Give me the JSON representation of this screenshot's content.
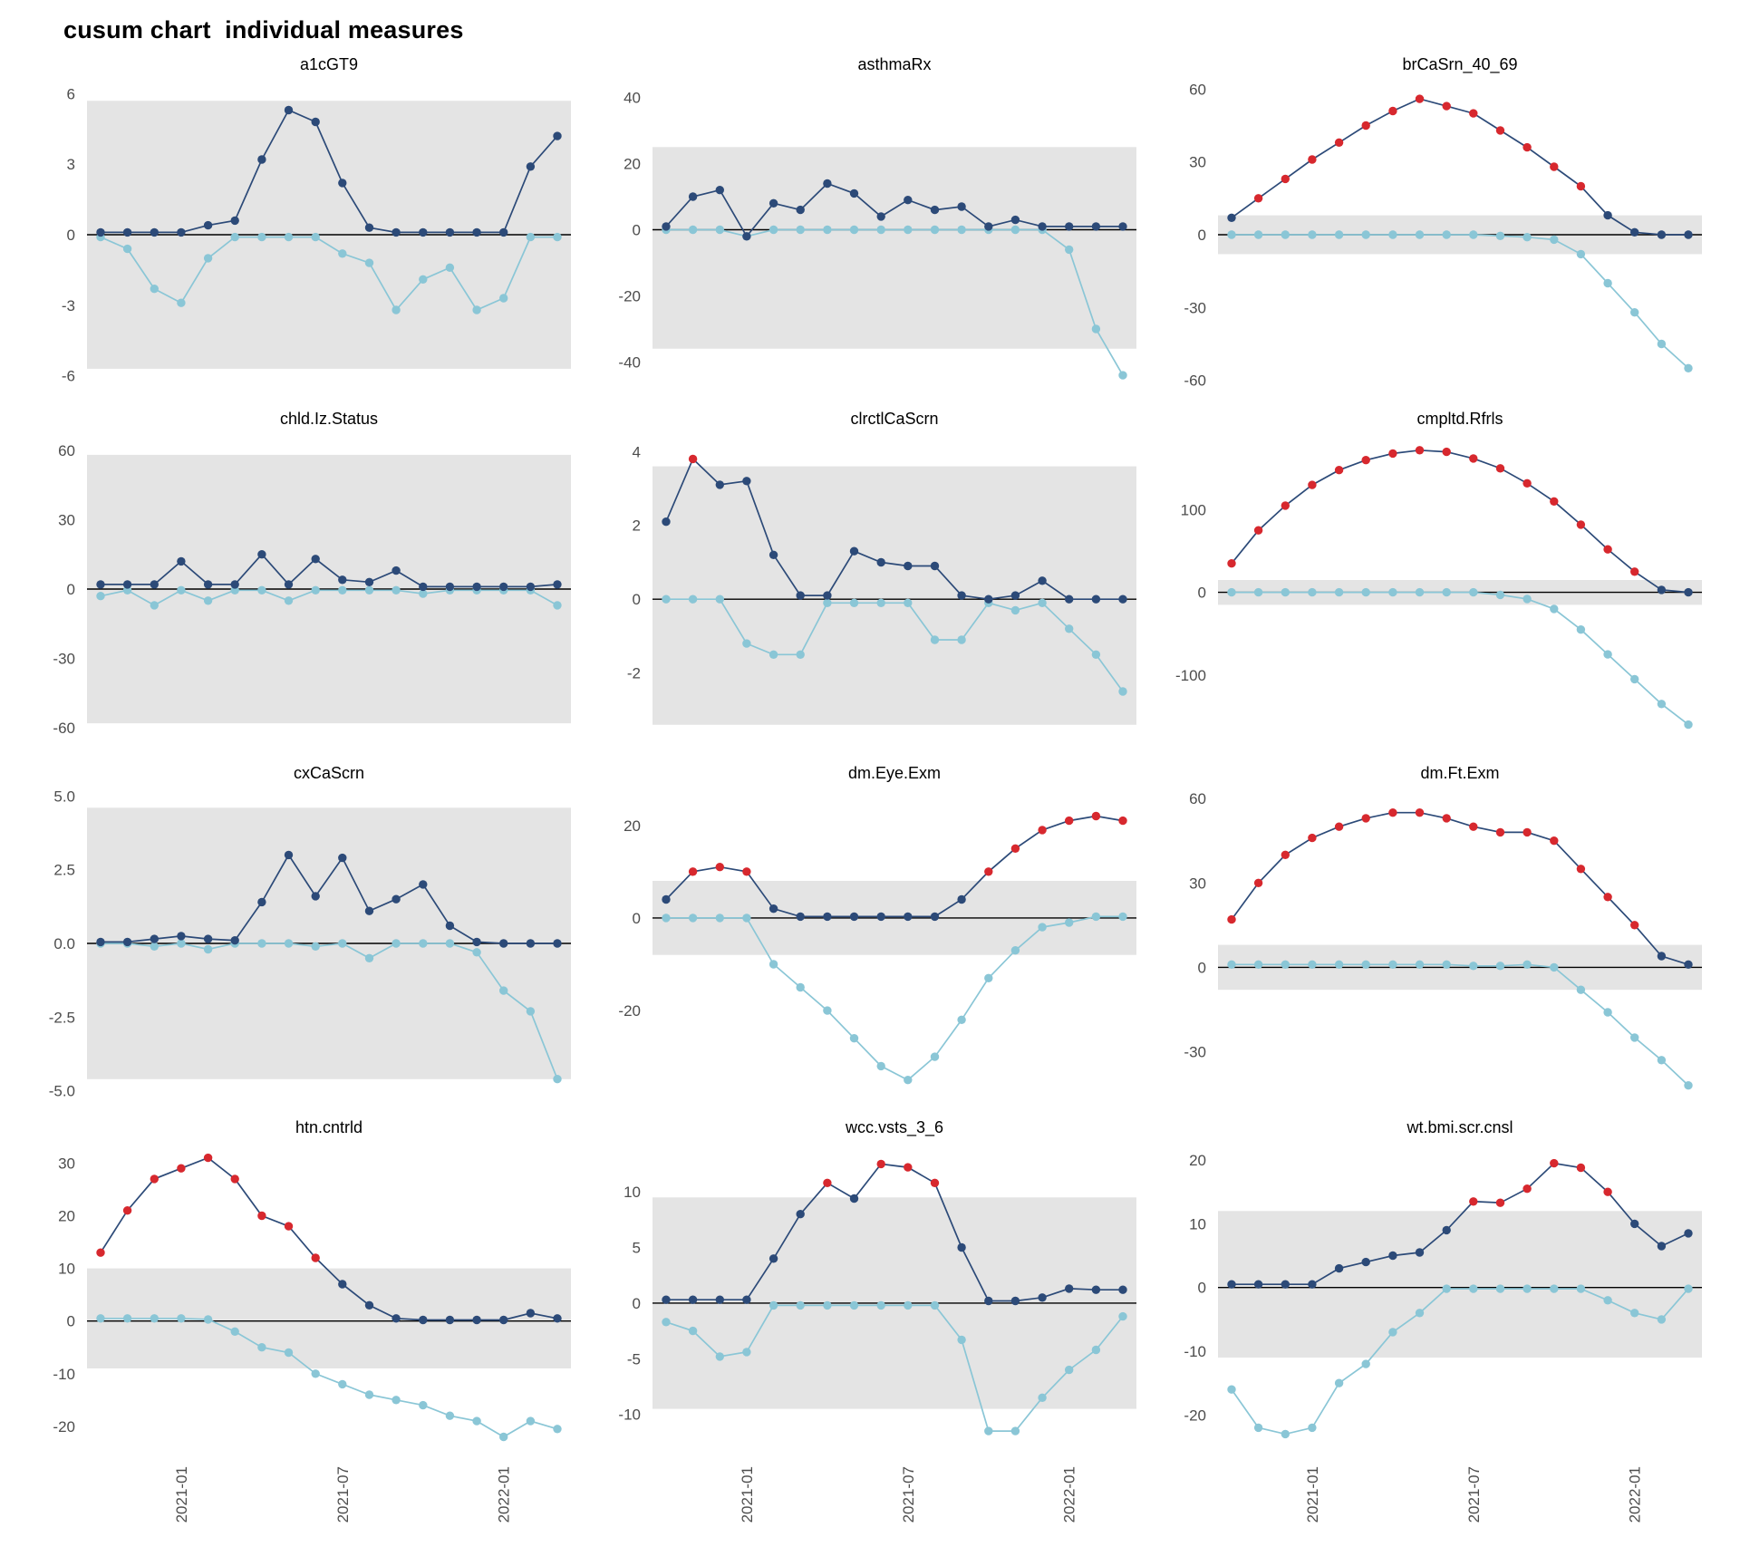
{
  "header": {
    "title": "cusum chart  individual measures"
  },
  "colors": {
    "upper_series": "#2c4a78",
    "lower_series": "#8ac6d6",
    "signal": "#d7282e",
    "band": "#e4e4e4",
    "zero_line": "#000000",
    "tick_text": "#4d4d4d",
    "panel_title_text": "#000000"
  },
  "x_axis": {
    "n_points": 18,
    "tick_indices": [
      3,
      9,
      15
    ],
    "tick_labels": [
      "2021-01",
      "2021-07",
      "2022-01"
    ]
  },
  "chart_data": [
    {
      "type": "line",
      "title": "a1cGT9",
      "ylim": [
        -6.4,
        6.4
      ],
      "band": [
        -5.7,
        5.7
      ],
      "ytick_values": [
        6,
        3,
        0,
        -3,
        -6
      ],
      "ytick_labels": [
        "6",
        "3",
        "0",
        "-3",
        "-6"
      ],
      "series": [
        {
          "name": "cusum_upper",
          "values": [
            0.1,
            0.1,
            0.1,
            0.1,
            0.4,
            0.6,
            3.2,
            5.3,
            4.8,
            2.2,
            0.3,
            0.1,
            0.1,
            0.1,
            0.1,
            0.1,
            2.9,
            4.2
          ]
        },
        {
          "name": "cusum_lower",
          "values": [
            -0.1,
            -0.6,
            -2.3,
            -2.9,
            -1.0,
            -0.1,
            -0.1,
            -0.1,
            -0.1,
            -0.8,
            -1.2,
            -3.2,
            -1.9,
            -1.4,
            -3.2,
            -2.7,
            -0.1,
            -0.1
          ]
        }
      ]
    },
    {
      "type": "line",
      "title": "asthmaRx",
      "ylim": [
        -47,
        44
      ],
      "band": [
        -36,
        25
      ],
      "ytick_values": [
        40,
        20,
        0,
        -20,
        -40
      ],
      "ytick_labels": [
        "40",
        "20",
        "0",
        "-20",
        "-40"
      ],
      "series": [
        {
          "name": "cusum_upper",
          "values": [
            1,
            10,
            12,
            -2,
            8,
            6,
            14,
            11,
            4,
            9,
            6,
            7,
            1,
            3,
            1,
            1,
            1,
            1
          ]
        },
        {
          "name": "cusum_lower",
          "values": [
            0,
            0,
            0,
            -2,
            0,
            0,
            0,
            0,
            0,
            0,
            0,
            0,
            0,
            0,
            0,
            -6,
            -30,
            -44
          ]
        }
      ]
    },
    {
      "type": "line",
      "title": "brCaSrn_40_69",
      "ylim": [
        -62,
        62
      ],
      "band": [
        -8,
        8
      ],
      "ytick_values": [
        60,
        30,
        0,
        -30,
        -60
      ],
      "ytick_labels": [
        "60",
        "30",
        "0",
        "-30",
        "-60"
      ],
      "series": [
        {
          "name": "cusum_upper",
          "values": [
            7,
            15,
            23,
            31,
            38,
            45,
            51,
            56,
            53,
            50,
            43,
            36,
            28,
            20,
            8,
            1,
            0,
            0
          ]
        },
        {
          "name": "cusum_lower",
          "values": [
            0,
            0,
            0,
            0,
            0,
            0,
            0,
            0,
            0,
            0,
            -0.5,
            -1,
            -2,
            -8,
            -20,
            -32,
            -45,
            -55
          ]
        }
      ]
    },
    {
      "type": "line",
      "title": "chld.Iz.Status",
      "ylim": [
        -65,
        65
      ],
      "band": [
        -58,
        58
      ],
      "ytick_values": [
        60,
        30,
        0,
        -30,
        -60
      ],
      "ytick_labels": [
        "60",
        "30",
        "0",
        "-30",
        "-60"
      ],
      "series": [
        {
          "name": "cusum_upper",
          "values": [
            2,
            2,
            2,
            12,
            2,
            2,
            15,
            2,
            13,
            4,
            3,
            8,
            1,
            1,
            1,
            1,
            1,
            2
          ]
        },
        {
          "name": "cusum_lower",
          "values": [
            -3,
            -0.5,
            -7,
            -0.5,
            -5,
            -0.5,
            -0.5,
            -5,
            -0.5,
            -0.5,
            -0.5,
            -0.5,
            -2,
            -0.5,
            -0.5,
            -0.5,
            -0.5,
            -7
          ]
        }
      ]
    },
    {
      "type": "line",
      "title": "clrctlCaScrn",
      "ylim": [
        -3.8,
        4.35
      ],
      "band": [
        -3.4,
        3.6
      ],
      "ytick_values": [
        4,
        2,
        0,
        -2
      ],
      "ytick_labels": [
        "4",
        "2",
        "0",
        "-2"
      ],
      "series": [
        {
          "name": "cusum_upper",
          "values": [
            2.1,
            3.8,
            3.1,
            3.2,
            1.2,
            0.1,
            0.1,
            1.3,
            1.0,
            0.9,
            0.9,
            0.1,
            0.0,
            0.1,
            0.5,
            0.0,
            0.0,
            0.0
          ]
        },
        {
          "name": "cusum_lower",
          "values": [
            0,
            0,
            0,
            -1.2,
            -1.5,
            -1.5,
            -0.1,
            -0.1,
            -0.1,
            -0.1,
            -1.1,
            -1.1,
            -0.1,
            -0.3,
            -0.1,
            -0.8,
            -1.5,
            -2.5
          ]
        }
      ]
    },
    {
      "type": "line",
      "title": "cmpltd.Rfrls",
      "ylim": [
        -178,
        186
      ],
      "band": [
        -15,
        15
      ],
      "ytick_values": [
        100,
        0,
        -100
      ],
      "ytick_labels": [
        "100",
        "0",
        "-100"
      ],
      "series": [
        {
          "name": "cusum_upper",
          "values": [
            35,
            75,
            105,
            130,
            148,
            160,
            168,
            172,
            170,
            162,
            150,
            132,
            110,
            82,
            52,
            25,
            3,
            0
          ]
        },
        {
          "name": "cusum_lower",
          "values": [
            0,
            0,
            0,
            0,
            0,
            0,
            0,
            0,
            0,
            0,
            -3,
            -8,
            -20,
            -45,
            -75,
            -105,
            -135,
            -160
          ]
        }
      ]
    },
    {
      "type": "line",
      "title": "cxCaScrn",
      "ylim": [
        -5.1,
        5.1
      ],
      "band": [
        -4.6,
        4.6
      ],
      "ytick_values": [
        5.0,
        2.5,
        0.0,
        -2.5,
        -5.0
      ],
      "ytick_labels": [
        "5.0",
        "2.5",
        "0.0",
        "-2.5",
        "-5.0"
      ],
      "series": [
        {
          "name": "cusum_upper",
          "values": [
            0.05,
            0.05,
            0.15,
            0.25,
            0.15,
            0.1,
            1.4,
            3.0,
            1.6,
            2.9,
            1.1,
            1.5,
            2.0,
            0.6,
            0.05,
            0.0,
            0.0,
            0.0
          ]
        },
        {
          "name": "cusum_lower",
          "values": [
            0,
            0,
            -0.1,
            0,
            -0.2,
            0,
            0,
            0,
            -0.1,
            0,
            -0.5,
            0,
            0,
            0,
            -0.3,
            -1.6,
            -2.3,
            -4.6
          ]
        }
      ]
    },
    {
      "type": "line",
      "title": "dm.Eye.Exm",
      "ylim": [
        -38,
        27
      ],
      "band": [
        -8,
        8
      ],
      "ytick_values": [
        20,
        0,
        -20
      ],
      "ytick_labels": [
        "20",
        "0",
        "-20"
      ],
      "series": [
        {
          "name": "cusum_upper",
          "values": [
            4,
            10,
            11,
            10,
            2,
            0.3,
            0.3,
            0.3,
            0.3,
            0.3,
            0.3,
            4,
            10,
            15,
            19,
            21,
            22,
            21
          ]
        },
        {
          "name": "cusum_lower",
          "values": [
            0,
            0,
            0,
            0,
            -10,
            -15,
            -20,
            -26,
            -32,
            -35,
            -30,
            -22,
            -13,
            -7,
            -2,
            -1,
            0.3,
            0.3
          ]
        }
      ]
    },
    {
      "type": "line",
      "title": "dm.Ft.Exm",
      "ylim": [
        -45,
        62
      ],
      "band": [
        -8,
        8
      ],
      "ytick_values": [
        60,
        30,
        0,
        -30
      ],
      "ytick_labels": [
        "60",
        "30",
        "0",
        "-30"
      ],
      "series": [
        {
          "name": "cusum_upper",
          "values": [
            17,
            30,
            40,
            46,
            50,
            53,
            55,
            55,
            53,
            50,
            48,
            48,
            45,
            35,
            25,
            15,
            4,
            1
          ]
        },
        {
          "name": "cusum_lower",
          "values": [
            1,
            1,
            1,
            1,
            1,
            1,
            1,
            1,
            1,
            0.5,
            0.5,
            1,
            0,
            -8,
            -16,
            -25,
            -33,
            -42
          ]
        }
      ]
    },
    {
      "type": "line",
      "title": "htn.cntrld",
      "ylim": [
        -24.5,
        33
      ],
      "band": [
        -9,
        10
      ],
      "ytick_values": [
        30,
        20,
        10,
        0,
        -10,
        -20
      ],
      "ytick_labels": [
        "30",
        "20",
        "10",
        "0",
        "-10",
        "-20"
      ],
      "series": [
        {
          "name": "cusum_upper",
          "values": [
            13,
            21,
            27,
            29,
            31,
            27,
            20,
            18,
            12,
            7,
            3,
            0.5,
            0.2,
            0.2,
            0.2,
            0.2,
            1.5,
            0.5
          ]
        },
        {
          "name": "cusum_lower",
          "values": [
            0.5,
            0.5,
            0.5,
            0.5,
            0.3,
            -2,
            -5,
            -6,
            -10,
            -12,
            -14,
            -15,
            -16,
            -18,
            -19,
            -22,
            -19,
            -20.5
          ]
        }
      ]
    },
    {
      "type": "line",
      "title": "wcc.vsts_3_6",
      "ylim": [
        -13.2,
        14
      ],
      "band": [
        -9.5,
        9.5
      ],
      "ytick_values": [
        10,
        5,
        0,
        -5,
        -10
      ],
      "ytick_labels": [
        "10",
        "5",
        "0",
        "-5",
        "-10"
      ],
      "series": [
        {
          "name": "cusum_upper",
          "values": [
            0.3,
            0.3,
            0.3,
            0.3,
            4,
            8,
            10.8,
            9.4,
            12.5,
            12.2,
            10.8,
            5,
            0.2,
            0.2,
            0.5,
            1.3,
            1.2,
            1.2
          ]
        },
        {
          "name": "cusum_lower",
          "values": [
            -1.7,
            -2.5,
            -4.8,
            -4.4,
            -0.2,
            -0.2,
            -0.2,
            -0.2,
            -0.2,
            -0.2,
            -0.2,
            -3.3,
            -11.5,
            -11.5,
            -8.5,
            -6,
            -4.2,
            -1.2
          ]
        }
      ]
    },
    {
      "type": "line",
      "title": "wt.bmi.scr.cnsl",
      "ylim": [
        -25.5,
        22
      ],
      "band": [
        -11,
        12
      ],
      "ytick_values": [
        20,
        10,
        0,
        -10,
        -20
      ],
      "ytick_labels": [
        "20",
        "10",
        "0",
        "-10",
        "-20"
      ],
      "series": [
        {
          "name": "cusum_upper",
          "values": [
            0.5,
            0.5,
            0.5,
            0.5,
            3,
            4,
            5,
            5.5,
            9,
            13.5,
            13.3,
            15.5,
            19.5,
            18.8,
            15,
            10,
            6.5,
            8.5
          ]
        },
        {
          "name": "cusum_lower",
          "values": [
            -16,
            -22,
            -23,
            -22,
            -15,
            -12,
            -7,
            -4,
            -0.2,
            -0.2,
            -0.2,
            -0.2,
            -0.2,
            -0.2,
            -2,
            -4,
            -5,
            -0.2
          ]
        }
      ]
    }
  ]
}
